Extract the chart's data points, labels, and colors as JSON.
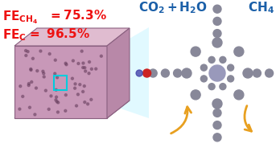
{
  "bg_color": "#ffffff",
  "text_fe_ch4": "FE",
  "text_fe_ch4_sub": "CH₄",
  "text_fe_ch4_val": " = 75.3%",
  "text_fe_c": "FE",
  "text_fe_c_sub": "C",
  "text_fe_c_val": " =  96.5%",
  "text_co2": "CO₂ + H₂O",
  "text_ch4": "CH₄",
  "red_color": "#ee1111",
  "blue_color": "#1a5fa8",
  "gold_color": "#e8a020",
  "cube_color": "#d8a8c0",
  "cube_edge_color": "#8a6080",
  "cyan_color": "#00ccdd",
  "molecule_gray": "#888899",
  "molecule_red": "#cc2222",
  "molecule_blue": "#4444aa"
}
